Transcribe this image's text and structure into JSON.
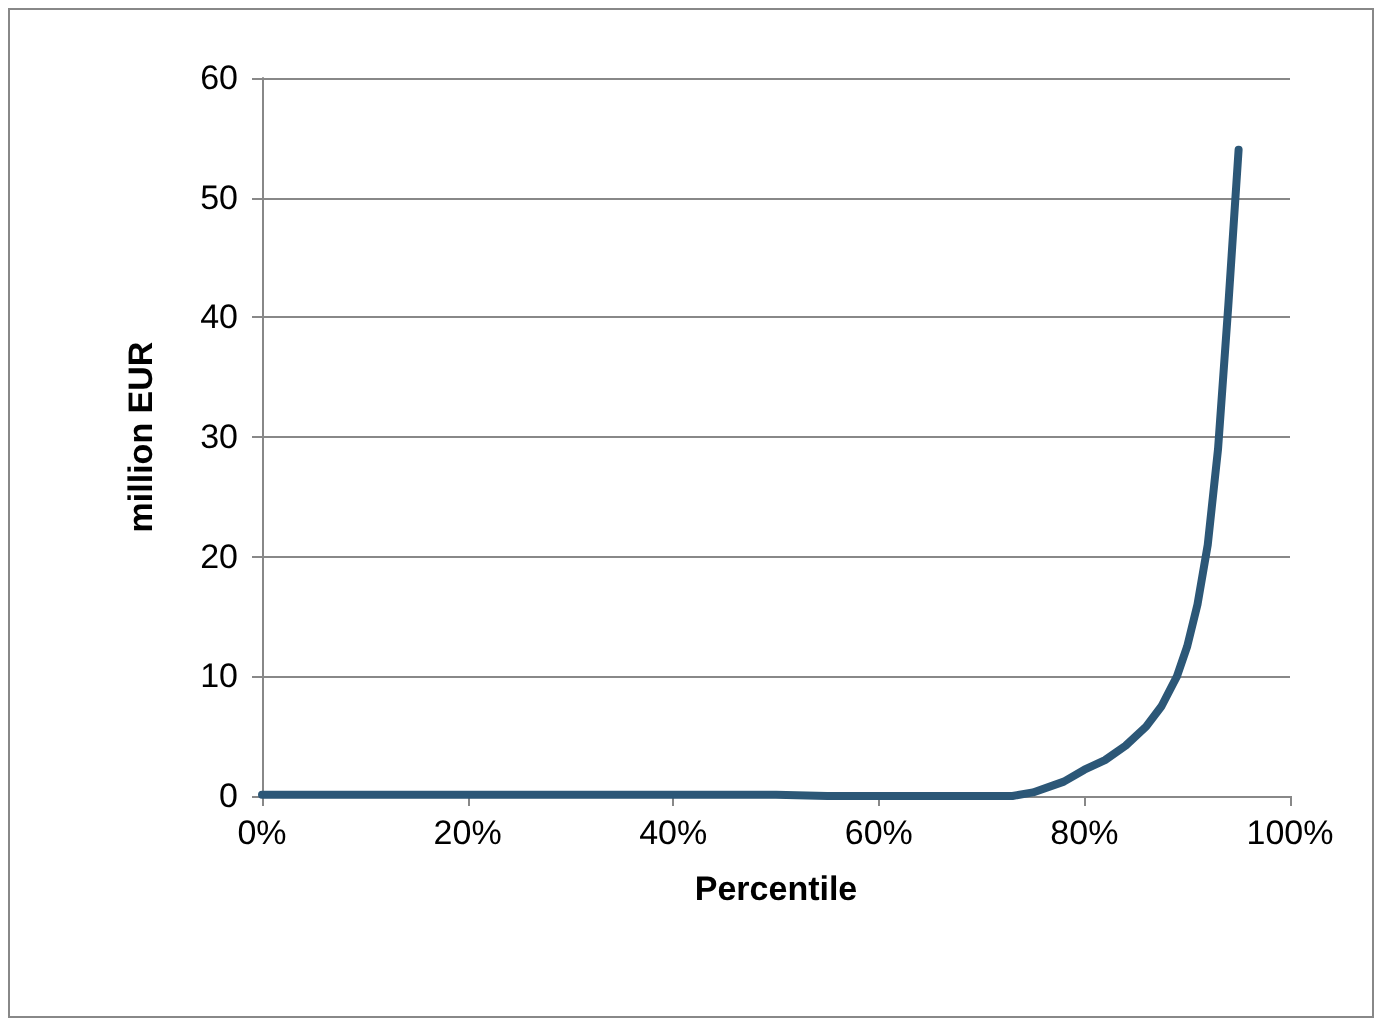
{
  "chart_data": {
    "type": "line",
    "xlabel": "Percentile",
    "ylabel": "million EUR",
    "x": [
      0,
      10,
      20,
      30,
      40,
      50,
      55,
      60,
      65,
      70,
      73,
      75,
      78,
      80,
      82,
      84,
      86,
      87.5,
      89,
      90,
      91,
      92,
      93,
      94,
      95
    ],
    "series": [
      {
        "color": "#2c5777",
        "values": [
          0.1,
          0.1,
          0.1,
          0.1,
          0.1,
          0.1,
          0,
          0,
          0,
          0,
          0,
          0.3,
          1.2,
          2.2,
          3,
          4.2,
          5.8,
          7.5,
          10,
          12.5,
          16,
          21,
          29,
          41,
          54
        ]
      }
    ],
    "xlim": [
      0,
      100
    ],
    "xticks": [
      {
        "value": 0,
        "label": "0%"
      },
      {
        "value": 20,
        "label": "20%"
      },
      {
        "value": 40,
        "label": "40%"
      },
      {
        "value": 60,
        "label": "60%"
      },
      {
        "value": 80,
        "label": "80%"
      },
      {
        "value": 100,
        "label": "100%"
      }
    ],
    "ylim": [
      0,
      60
    ],
    "yticks": [
      0,
      10,
      20,
      30,
      40,
      50,
      60
    ],
    "grid": "y",
    "marker": "none",
    "line_style": "solid"
  }
}
